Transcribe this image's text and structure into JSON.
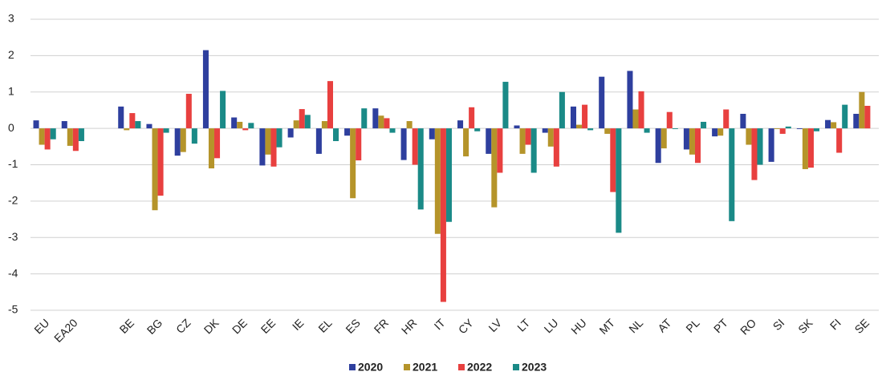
{
  "chart_data": {
    "type": "bar",
    "categories": [
      "EU",
      "EA20",
      null,
      "BE",
      "BG",
      "CZ",
      "DK",
      "DE",
      "EE",
      "IE",
      "EL",
      "ES",
      "FR",
      "HR",
      "IT",
      "CY",
      "LV",
      "LT",
      "LU",
      "HU",
      "MT",
      "NL",
      "AT",
      "PL",
      "PT",
      "RO",
      "SI",
      "SK",
      "FI",
      "SE"
    ],
    "series": [
      {
        "name": "2020",
        "color": "#2e3f9e",
        "values": [
          0.22,
          0.2,
          null,
          0.6,
          0.12,
          -0.75,
          2.15,
          0.3,
          -1.02,
          -0.25,
          -0.7,
          -0.2,
          0.55,
          -0.87,
          -0.3,
          0.22,
          -0.7,
          0.08,
          -0.12,
          0.6,
          1.42,
          1.58,
          -0.95,
          -0.58,
          -0.22,
          0.4,
          -0.92,
          -0.02,
          0.23,
          0.4
        ]
      },
      {
        "name": "2021",
        "color": "#b5942a",
        "values": [
          -0.45,
          -0.48,
          null,
          -0.05,
          -2.25,
          -0.65,
          -1.1,
          0.18,
          -0.72,
          0.22,
          0.2,
          -1.92,
          0.35,
          0.2,
          -2.9,
          -0.77,
          -2.17,
          -0.7,
          -0.5,
          0.1,
          -0.15,
          0.52,
          -0.55,
          -0.72,
          -0.2,
          -0.45,
          -0.02,
          -1.12,
          0.17,
          1.0
        ]
      },
      {
        "name": "2022",
        "color": "#e8403f",
        "values": [
          -0.58,
          -0.62,
          null,
          0.42,
          -1.85,
          0.95,
          -0.82,
          -0.05,
          -1.05,
          0.53,
          1.3,
          -0.88,
          0.28,
          -1.0,
          -4.77,
          0.58,
          -1.22,
          -0.45,
          -1.05,
          0.65,
          -1.75,
          1.02,
          0.45,
          -0.95,
          0.52,
          -1.42,
          -0.15,
          -1.08,
          -0.67,
          0.62
        ]
      },
      {
        "name": "2023",
        "color": "#1a8a87",
        "values": [
          -0.3,
          -0.35,
          null,
          0.2,
          -0.12,
          -0.42,
          1.03,
          0.15,
          -0.52,
          0.37,
          -0.35,
          0.55,
          -0.12,
          -2.23,
          -2.57,
          -0.08,
          1.28,
          -1.22,
          1.0,
          -0.05,
          -2.87,
          -0.12,
          -0.02,
          0.18,
          -2.55,
          -1.0,
          0.05,
          -0.08,
          0.65,
          null
        ]
      }
    ],
    "ylim": [
      -5,
      3
    ],
    "yticks": [
      -5,
      -4,
      -3,
      -2,
      -1,
      0,
      1,
      2,
      3
    ],
    "grid": true
  }
}
